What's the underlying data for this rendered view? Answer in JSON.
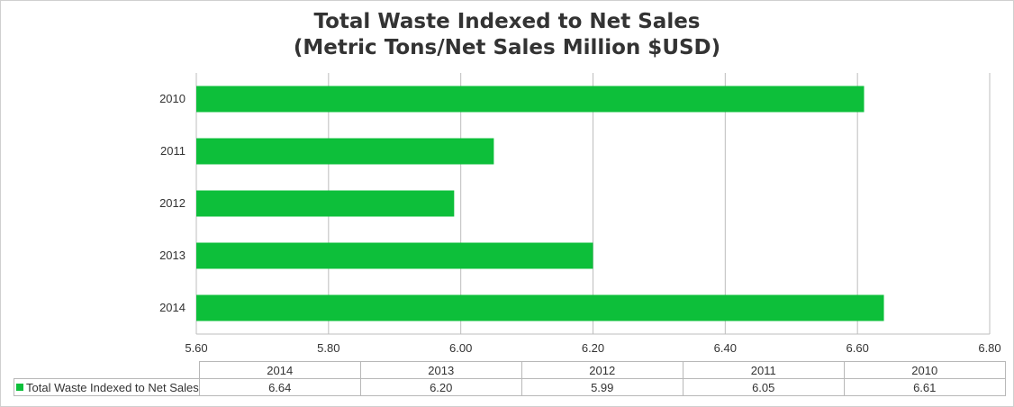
{
  "chart_data": {
    "type": "bar",
    "orientation": "horizontal",
    "title": "Total Waste Indexed to Net Sales",
    "subtitle": "(Metric Tons/Net Sales Million $USD)",
    "categories": [
      "2010",
      "2011",
      "2012",
      "2013",
      "2014"
    ],
    "series": [
      {
        "name": "Total Waste Indexed to Net Sales",
        "values": [
          6.61,
          6.05,
          5.99,
          6.2,
          6.64
        ]
      }
    ],
    "xlim": [
      5.6,
      6.8
    ],
    "xticks": [
      "5.60",
      "5.80",
      "6.00",
      "6.20",
      "6.40",
      "6.60",
      "6.80"
    ],
    "grid": true,
    "bar_color": "#0dbf3a",
    "data_table": {
      "columns": [
        "2014",
        "2013",
        "2012",
        "2011",
        "2010"
      ],
      "row_label": "Total Waste Indexed to Net Sales",
      "values": [
        "6.64",
        "6.20",
        "5.99",
        "6.05",
        "6.61"
      ]
    }
  }
}
